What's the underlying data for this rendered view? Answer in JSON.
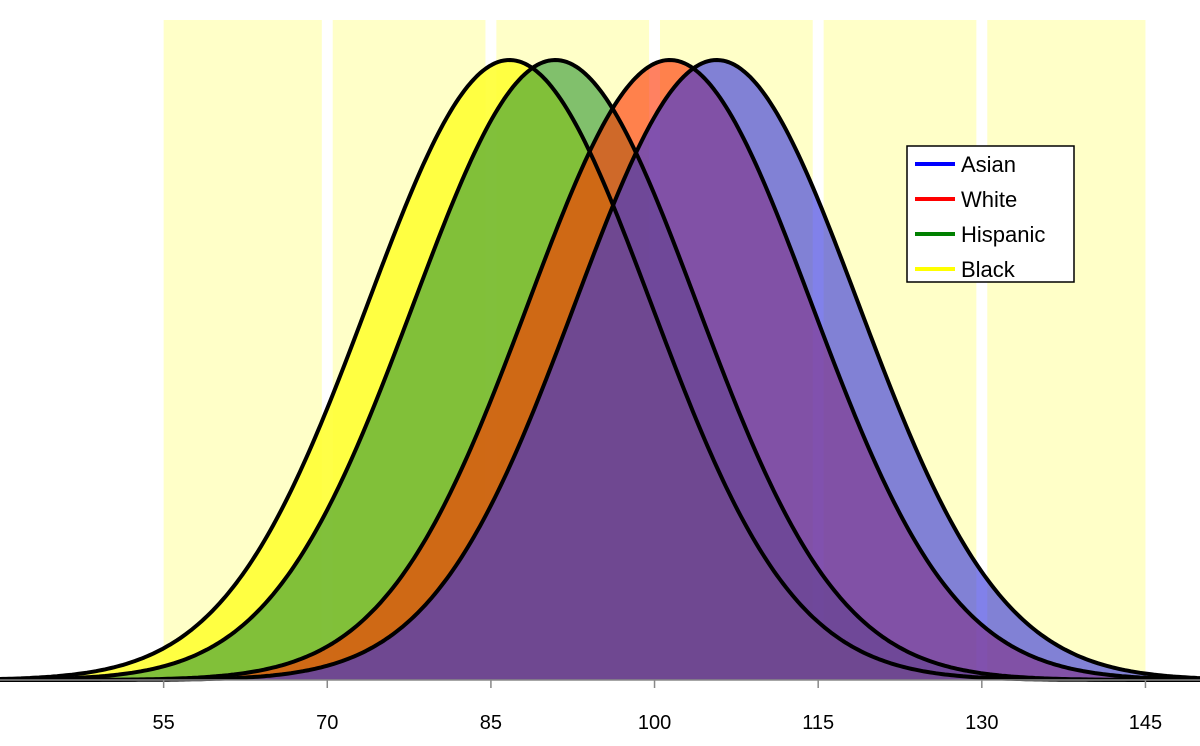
{
  "chart_data": {
    "type": "area",
    "title": "",
    "xlabel": "",
    "ylabel": "",
    "xlim": [
      40,
      150
    ],
    "xticks": [
      55,
      70,
      85,
      100,
      115,
      130,
      145
    ],
    "bands": [
      [
        55,
        69.5
      ],
      [
        70.5,
        84.5
      ],
      [
        85.5,
        99.5
      ],
      [
        100.5,
        114.5
      ],
      [
        115.5,
        129.5
      ],
      [
        130.5,
        145
      ]
    ],
    "band_color": "#ffffc8",
    "grid": false,
    "legend_position": "right",
    "series": [
      {
        "name": "Black",
        "mean": 86.7,
        "sd": 13,
        "fill": "#ffff33",
        "opacity": 0.9,
        "line": "#ffff00"
      },
      {
        "name": "Hispanic",
        "mean": 90.9,
        "sd": 13,
        "fill": "#339933",
        "opacity": 0.62,
        "line": "#008000"
      },
      {
        "name": "White",
        "mean": 101.4,
        "sd": 13,
        "fill": "#ff3300",
        "opacity": 0.62,
        "line": "#ff0000"
      },
      {
        "name": "Asian",
        "mean": 105.7,
        "sd": 13,
        "fill": "#3333dd",
        "opacity": 0.62,
        "line": "#0000ff"
      }
    ],
    "legend_order": [
      "Asian",
      "White",
      "Hispanic",
      "Black"
    ]
  }
}
